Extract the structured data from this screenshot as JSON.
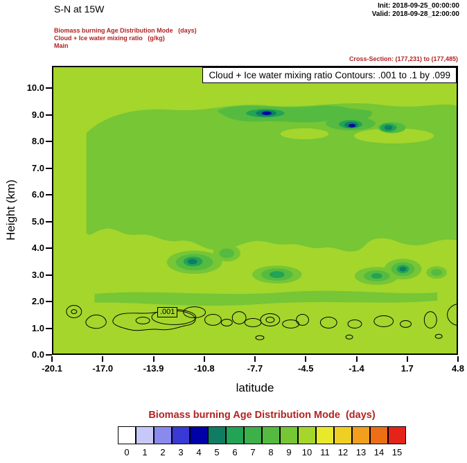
{
  "colors": {
    "annotation_red": "#b22222",
    "frame_black": "#000000",
    "background": "#ffffff"
  },
  "header": {
    "title": "S-N at 15W",
    "init_line": "Init: 2018-09-25_00:00:00",
    "valid_line": "Valid: 2018-09-28_12:00:00",
    "field_line_1": "Biomass burning Age Distribution Mode   (days)",
    "field_line_2": "Cloud + Ice water mixing ratio   (g/kg)",
    "field_line_3": "Main",
    "cross_section": "Cross-Section: (177,231) to (177,485)"
  },
  "plot": {
    "inner_title": "Cloud + Ice water mixing ratio Contours: .001 to .1 by .099",
    "xlabel": "latitude",
    "ylabel": "Height (km)",
    "contour_label": ".001"
  },
  "axes": {
    "yticks": [
      "0.0",
      "1.0",
      "2.0",
      "3.0",
      "4.0",
      "5.0",
      "6.0",
      "7.0",
      "8.0",
      "9.0",
      "10.0"
    ],
    "xticks": [
      "-20.1",
      "-17.0",
      "-13.9",
      "-10.8",
      "-7.7",
      "-4.5",
      "-1.4",
      "1.7",
      "4.8"
    ]
  },
  "colorbar": {
    "title": "Biomass burning Age Distribution Mode  (days)",
    "labels": [
      "0",
      "1",
      "2",
      "3",
      "4",
      "5",
      "6",
      "7",
      "8",
      "9",
      "10",
      "11",
      "12",
      "13",
      "14",
      "15"
    ],
    "colors": [
      "#ffffff",
      "#c8c8f8",
      "#8989ee",
      "#3939d6",
      "#0000a8",
      "#0f7d64",
      "#22a355",
      "#3eb04a",
      "#55bb40",
      "#76c636",
      "#a4d62c",
      "#e9e92c",
      "#f0cf24",
      "#f19f1c",
      "#ec6f15",
      "#e62319"
    ]
  },
  "chart_data": {
    "type": "heatmap",
    "title": "Cloud + Ice water mixing ratio Contours: .001 to .1 by .099",
    "section_title": "S-N at 15W",
    "xlabel": "latitude",
    "ylabel": "Height (km)",
    "xlim": [
      -20.1,
      4.8
    ],
    "ylim": [
      0,
      10.8
    ],
    "xticks": [
      -20.1,
      -17.0,
      -13.9,
      -10.8,
      -7.7,
      -4.5,
      -1.4,
      1.7,
      4.8
    ],
    "yticks": [
      0,
      1,
      2,
      3,
      4,
      5,
      6,
      7,
      8,
      9,
      10
    ],
    "grid": false,
    "legend_position": "bottom-colorbar",
    "fill_variable": "Biomass burning Age Distribution Mode (days)",
    "fill_levels_days": [
      0,
      1,
      2,
      3,
      4,
      5,
      6,
      7,
      8,
      9,
      10,
      11,
      12,
      13,
      14,
      15
    ],
    "fill_palette": [
      "#ffffff",
      "#c8c8f8",
      "#8989ee",
      "#3939d6",
      "#0000a8",
      "#0f7d64",
      "#22a355",
      "#3eb04a",
      "#55bb40",
      "#76c636",
      "#a4d62c",
      "#e9e92c",
      "#f0cf24",
      "#f19f1c",
      "#ec6f15",
      "#e62319"
    ],
    "contour_variable": "Cloud + Ice water mixing ratio (g/kg)",
    "contour_levels": [
      0.001,
      0.1
    ],
    "contour_interval": 0.099,
    "labeled_contour_value": 0.001,
    "labeled_contour_position": {
      "latitude": -12.4,
      "height_km": 1.6
    },
    "fill_regions": [
      {
        "value_days": 10,
        "where": "background over most of the section: below ~4.2 km, above ~9.5 km, and the column west of lat -18"
      },
      {
        "value_days": 9,
        "where": "broad layer from ~4.3 km to ~9.4 km spanning lat -18 to 4.8; thin band near 2 km; blobs near 3 km at lat -11.5, -6.3, -0.3, 1.3, 3.5"
      },
      {
        "value_days": 8,
        "where": "patches near 9 km between lat -10 and 0.5; cores of the ~3 km blobs"
      },
      {
        "value_days": 6,
        "where": "small cores near 9 km at lat -7 and -1.7; cores near 3 km at lat -11.5, -6.3, 1.3"
      },
      {
        "value_days": 5,
        "where": "innermost cores of the same features"
      },
      {
        "value_days": 4,
        "where": "tiny deep-blue cores in the 9 km band at lat -6.9 and -1.6"
      }
    ],
    "cloud_contour_summary": "chain of closed 0.001 g/kg contours between ~0.6 and ~1.9 km height across lat -19.5 to 4.8"
  }
}
